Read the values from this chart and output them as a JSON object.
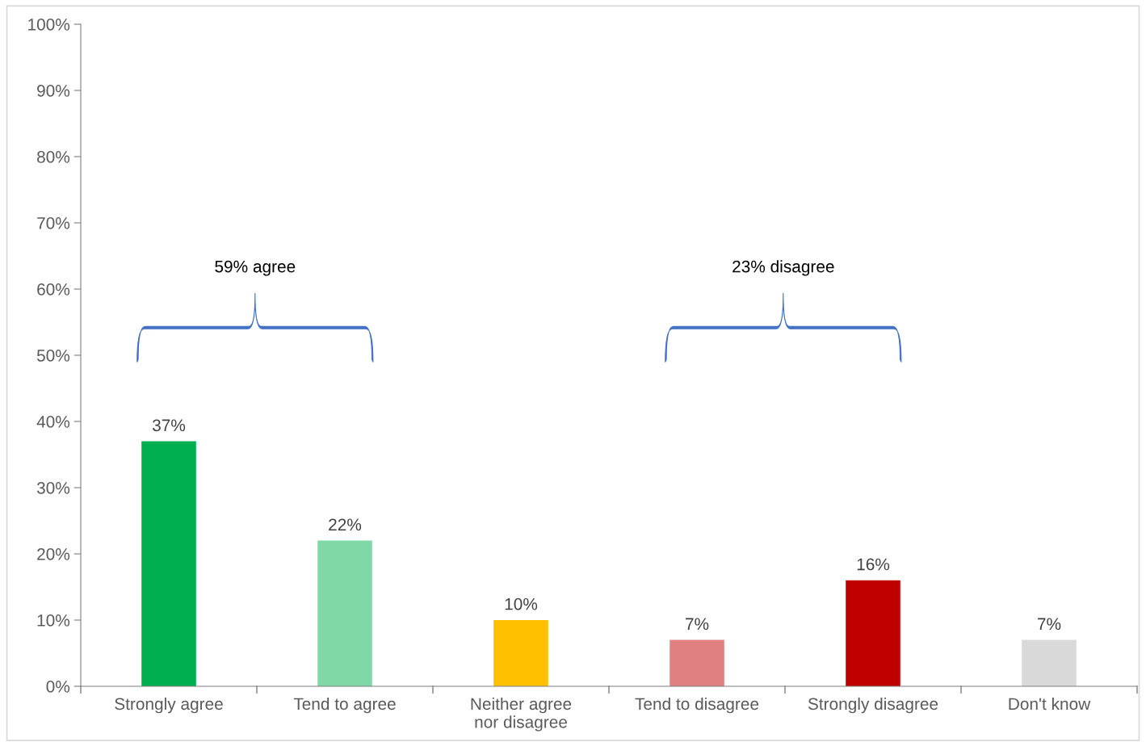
{
  "chart_data": {
    "type": "bar",
    "categories": [
      "Strongly agree",
      "Tend to agree",
      "Neither agree nor disagree",
      "Tend to disagree",
      "Strongly disagree",
      "Don't know"
    ],
    "values": [
      37,
      22,
      10,
      7,
      16,
      7
    ],
    "colors": [
      "#00b050",
      "#80d8a8",
      "#ffc000",
      "#e08080",
      "#c00000",
      "#d9d9d9"
    ],
    "value_labels": [
      "37%",
      "22%",
      "10%",
      "7%",
      "16%",
      "7%"
    ],
    "ylim": [
      0,
      100
    ],
    "yticks": [
      {
        "value": 0,
        "label": "0%"
      },
      {
        "value": 10,
        "label": "10%"
      },
      {
        "value": 20,
        "label": "20%"
      },
      {
        "value": 30,
        "label": "30%"
      },
      {
        "value": 40,
        "label": "40%"
      },
      {
        "value": 50,
        "label": "50%"
      },
      {
        "value": 60,
        "label": "60%"
      },
      {
        "value": 70,
        "label": "70%"
      },
      {
        "value": 80,
        "label": "80%"
      },
      {
        "value": 90,
        "label": "90%"
      },
      {
        "value": 100,
        "label": "100%"
      }
    ],
    "annotations": [
      "59% agree",
      "23% disagree"
    ],
    "grid": false,
    "legend": false
  }
}
